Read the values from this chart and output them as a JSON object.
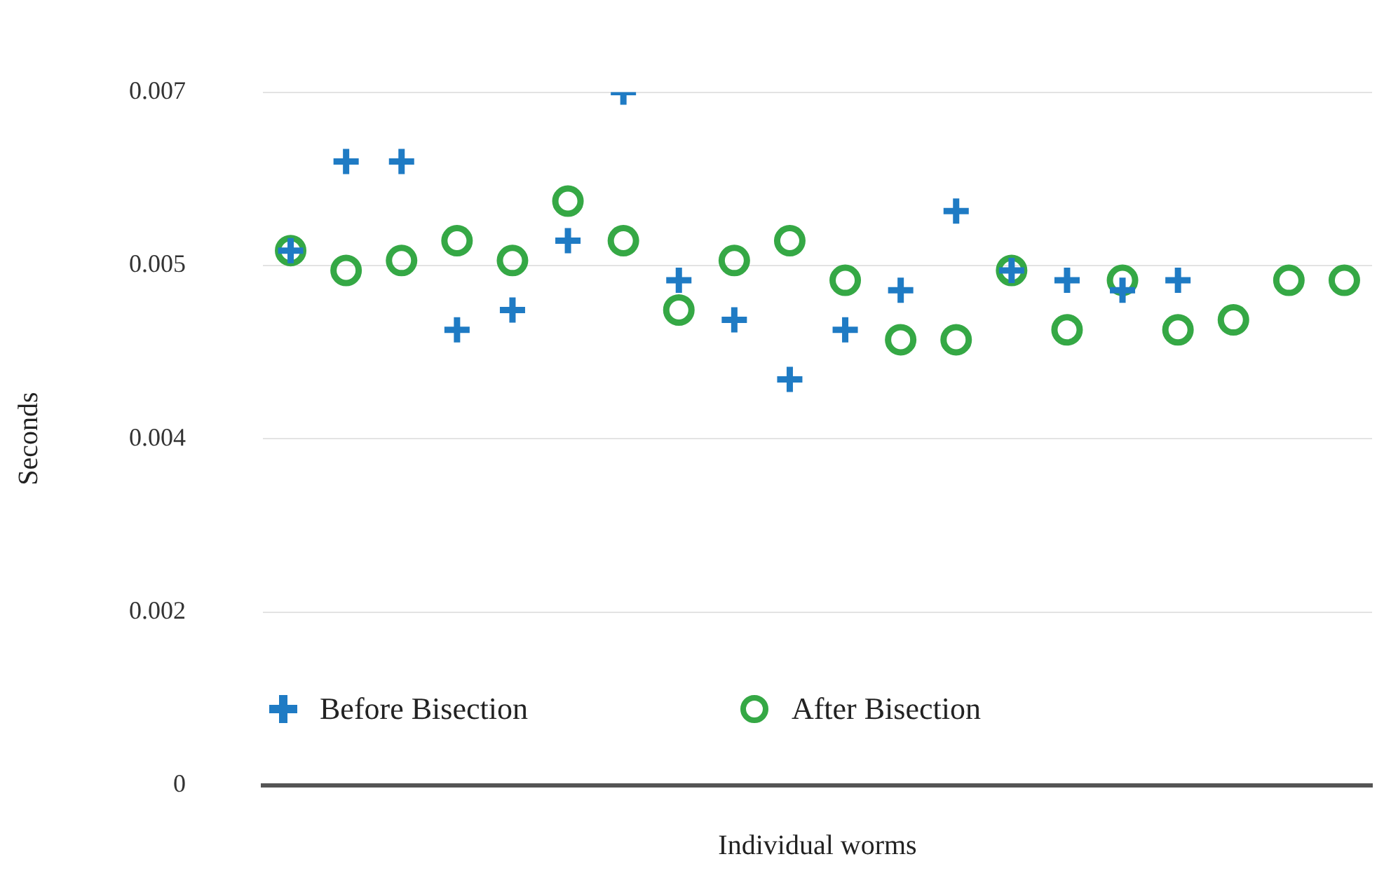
{
  "chart_data": {
    "type": "scatter",
    "xlabel": "Individual worms",
    "ylabel": "Seconds",
    "categories": [
      null,
      null,
      null,
      null,
      null,
      null,
      null,
      null,
      null,
      null,
      null,
      null,
      null,
      null,
      null,
      null,
      null,
      null,
      null,
      null
    ],
    "series": [
      {
        "name": "Before Bisection",
        "color": "#1f7bc4",
        "marker": "cross",
        "values": [
          0.0054,
          0.0063,
          0.0063,
          0.0046,
          0.0048,
          0.0055,
          0.007,
          0.0051,
          0.0047,
          0.0041,
          0.0046,
          0.005,
          0.0058,
          0.0052,
          0.0051,
          0.005,
          0.0051,
          null,
          null,
          null
        ]
      },
      {
        "name": "After Bisection",
        "color": "#35a845",
        "marker": "circle",
        "values": [
          0.0054,
          0.0052,
          0.0053,
          0.0055,
          0.0053,
          0.0059,
          0.0055,
          0.0048,
          0.0053,
          0.0055,
          0.0051,
          0.0045,
          0.0045,
          0.0052,
          0.0046,
          0.0051,
          0.0046,
          0.0047,
          0.0051,
          0.0051
        ]
      }
    ],
    "ylim": [
      0,
      0.007
    ],
    "yticks": [
      0,
      {
        "value": 0.00175,
        "label": "0.002"
      },
      {
        "value": 0.0035,
        "label": "0.004"
      },
      {
        "value": 0.00525,
        "label": "0.005"
      },
      0.007
    ],
    "grid": "y",
    "legend": "bottom"
  }
}
